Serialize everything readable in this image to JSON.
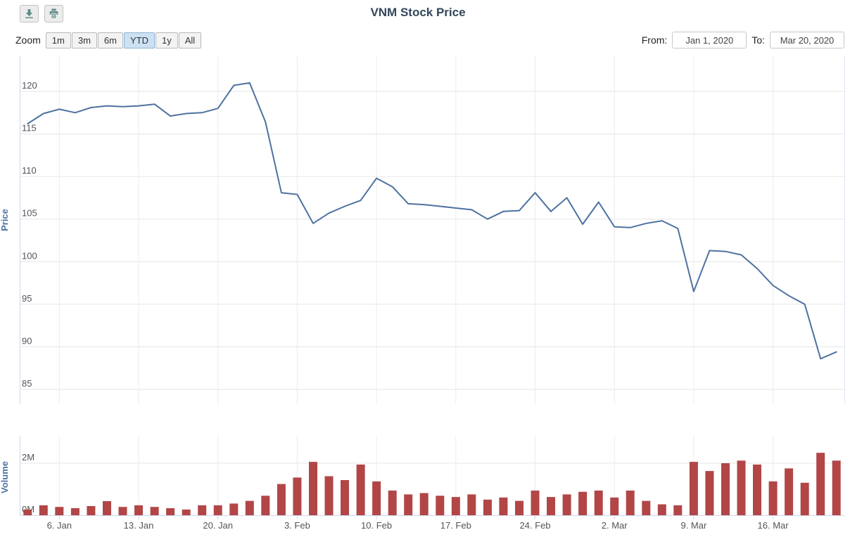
{
  "title": "VNM Stock Price",
  "toolbar": {
    "buttons": [
      {
        "name": "download",
        "icon": "download-icon"
      },
      {
        "name": "print",
        "icon": "print-icon"
      }
    ]
  },
  "range_selector": {
    "zoom_label": "Zoom",
    "buttons": [
      "1m",
      "3m",
      "6m",
      "YTD",
      "1y",
      "All"
    ],
    "selected": "YTD",
    "from_label": "From:",
    "from_value": "Jan 1, 2020",
    "to_label": "To:",
    "to_value": "Mar 20, 2020"
  },
  "colors": {
    "price_line": "#4d72a0",
    "volume_bar": "#b24646",
    "axis_title": "#4b72a8",
    "grid": "#ececec",
    "axis_line": "#ccd6eb",
    "label": "#555555",
    "title": "#33475b"
  },
  "chart_data": [
    {
      "type": "line",
      "title": "VNM Stock Price",
      "ylabel": "Price",
      "ylim": [
        84,
        123
      ],
      "yticks": [
        85,
        90,
        95,
        100,
        105,
        110,
        115,
        120
      ],
      "grid": true,
      "legend": false,
      "x": [
        "Jan 2",
        "Jan 3",
        "Jan 6",
        "Jan 7",
        "Jan 8",
        "Jan 9",
        "Jan 10",
        "Jan 13",
        "Jan 14",
        "Jan 15",
        "Jan 16",
        "Jan 17",
        "Jan 20",
        "Jan 21",
        "Jan 22",
        "Jan 30",
        "Jan 31",
        "Feb 3",
        "Feb 4",
        "Feb 5",
        "Feb 6",
        "Feb 7",
        "Feb 10",
        "Feb 11",
        "Feb 12",
        "Feb 13",
        "Feb 14",
        "Feb 17",
        "Feb 18",
        "Feb 19",
        "Feb 20",
        "Feb 21",
        "Feb 24",
        "Feb 25",
        "Feb 26",
        "Feb 27",
        "Feb 28",
        "Mar 2",
        "Mar 3",
        "Mar 4",
        "Mar 5",
        "Mar 6",
        "Mar 9",
        "Mar 10",
        "Mar 11",
        "Mar 12",
        "Mar 13",
        "Mar 16",
        "Mar 17",
        "Mar 18",
        "Mar 19",
        "Mar 20"
      ],
      "series": [
        {
          "name": "Price",
          "values": [
            116.2,
            117.4,
            117.9,
            117.5,
            118.1,
            118.3,
            118.2,
            118.3,
            118.5,
            117.1,
            117.4,
            117.5,
            118.0,
            120.7,
            121.0,
            116.4,
            108.1,
            107.9,
            104.5,
            105.7,
            106.5,
            107.2,
            109.8,
            108.8,
            106.8,
            106.7,
            106.5,
            106.3,
            106.1,
            105.0,
            105.9,
            106.0,
            108.1,
            105.9,
            107.5,
            104.4,
            107.0,
            104.1,
            104.0,
            104.5,
            104.8,
            103.9,
            96.5,
            101.3,
            101.2,
            100.8,
            99.2,
            97.2,
            96.0,
            95.0,
            88.6,
            89.4
          ]
        }
      ],
      "xtick_labels": [
        "6. Jan",
        "13. Jan",
        "20. Jan",
        "3. Feb",
        "10. Feb",
        "17. Feb",
        "24. Feb",
        "2. Mar",
        "9. Mar",
        "16. Mar"
      ],
      "xtick_indices": [
        2,
        7,
        12,
        17,
        22,
        27,
        32,
        37,
        42,
        47
      ]
    },
    {
      "type": "bar",
      "title": "Volume",
      "ylabel": "Volume",
      "ylim": [
        0,
        3
      ],
      "unit": "millions of shares",
      "yticks": [
        {
          "value": 0,
          "label": "0M"
        },
        {
          "value": 2,
          "label": "2M"
        }
      ],
      "values": [
        0.22,
        0.38,
        0.32,
        0.27,
        0.35,
        0.54,
        0.32,
        0.38,
        0.32,
        0.27,
        0.22,
        0.38,
        0.38,
        0.45,
        0.55,
        0.75,
        1.2,
        1.45,
        2.05,
        1.5,
        1.35,
        1.95,
        1.3,
        0.95,
        0.8,
        0.85,
        0.75,
        0.7,
        0.8,
        0.6,
        0.68,
        0.55,
        0.95,
        0.7,
        0.8,
        0.9,
        0.95,
        0.68,
        0.95,
        0.55,
        0.42,
        0.38,
        2.05,
        1.7,
        2.0,
        2.1,
        1.95,
        1.3,
        1.8,
        1.25,
        2.4,
        2.1
      ]
    }
  ]
}
